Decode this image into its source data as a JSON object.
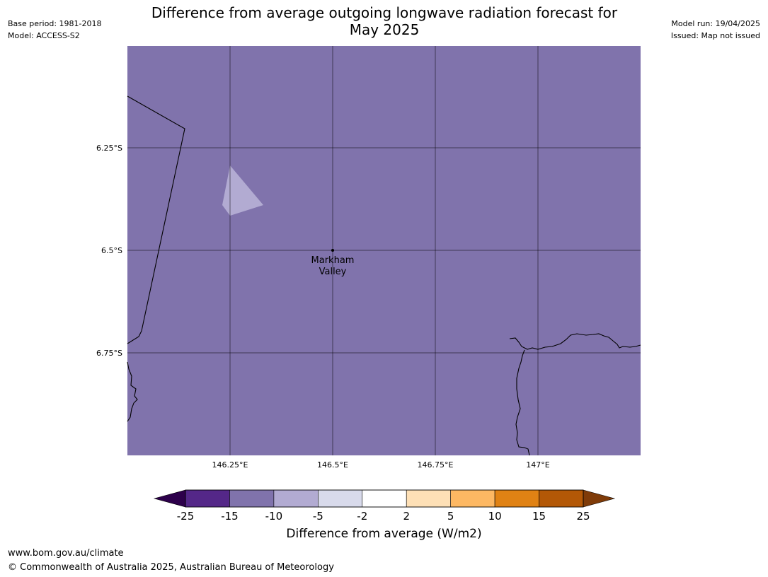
{
  "header": {
    "title_line1": "Difference from average outgoing longwave radiation forecast for",
    "title_line2": "May 2025",
    "base_period": "Base period: 1981-2018",
    "model": "Model: ACCESS-S2",
    "model_run": "Model run: 19/04/2025",
    "issued": "Issued: Map not issued"
  },
  "map": {
    "background_color": "#8073ac",
    "anomaly_patch_color": "#b2abd2",
    "location": {
      "name_line1": "Markham",
      "name_line2": "Valley"
    },
    "lat_labels": [
      "6.25°S",
      "6.5°S",
      "6.75°S"
    ],
    "lon_labels": [
      "146.25°E",
      "146.5°E",
      "146.75°E",
      "147°E"
    ]
  },
  "colorbar": {
    "label": "Difference from average (W/m2)",
    "ticks": [
      "-25",
      "-15",
      "-10",
      "-5",
      "-2",
      "2",
      "5",
      "10",
      "15",
      "25"
    ],
    "low_extend_color": "#2d004b",
    "high_extend_color": "#7f3b08",
    "colors": [
      "#542788",
      "#8073ac",
      "#b2abd2",
      "#d8daeb",
      "#ffffff",
      "#fee0b6",
      "#fdb863",
      "#e08214",
      "#b35806"
    ]
  },
  "footer": {
    "url": "www.bom.gov.au/climate",
    "copyright": "© Commonwealth of Australia 2025, Australian Bureau of Meteorology"
  }
}
